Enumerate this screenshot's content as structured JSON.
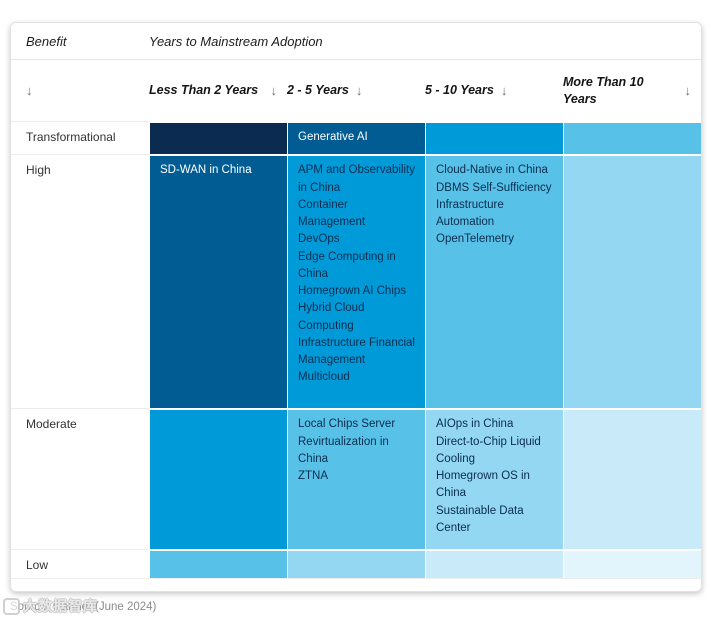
{
  "chart_data": {
    "type": "heatmap",
    "title": "",
    "row_axis_label": "Benefit",
    "col_axis_label": "Years to Mainstream Adoption",
    "legend": "none",
    "columns": [
      "Less Than 2 Years",
      "2 - 5 Years",
      "5 - 10 Years",
      "More Than 10 Years"
    ],
    "rows": [
      "Transformational",
      "High",
      "Moderate",
      "Low"
    ],
    "cells": [
      [
        [],
        [
          "Generative AI"
        ],
        [],
        []
      ],
      [
        [
          "SD-WAN in China"
        ],
        [
          "APM and Observability in China",
          "Container Management",
          "DevOps",
          "Edge Computing in China",
          "Homegrown AI Chips",
          "Hybrid Cloud Computing",
          "Infrastructure Financial Management",
          "Multicloud"
        ],
        [
          "Cloud-Native in China",
          "DBMS Self-Sufficiency",
          "Infrastructure Automation",
          "OpenTelemetry"
        ],
        []
      ],
      [
        [],
        [
          "Local Chips Server",
          "Revirtualization in China",
          "ZTNA"
        ],
        [
          "AIOps in China",
          "Direct-to-Chip Liquid Cooling",
          "Homegrown OS in China",
          "Sustainable Data Center"
        ],
        []
      ],
      [
        [],
        [],
        [],
        []
      ]
    ],
    "cell_colors": [
      [
        "#0C2B51",
        "#005C92",
        "#009AD9",
        "#58C1E8"
      ],
      [
        "#005C92",
        "#009AD9",
        "#58C1E8",
        "#93D7F2"
      ],
      [
        "#009AD9",
        "#58C1E8",
        "#93D7F2",
        "#C9EBF9"
      ],
      [
        "#58C1E8",
        "#93D7F2",
        "#C9EBF9",
        "#E2F4FC"
      ]
    ],
    "cell_text_colors": [
      [
        "#FFFFFF",
        "#FFFFFF",
        "#0B2D4E",
        "#0B2D4E"
      ],
      [
        "#FFFFFF",
        "#0B2D4E",
        "#0B2D4E",
        "#0B2D4E"
      ],
      [
        "#0B2D4E",
        "#0B2D4E",
        "#0B2D4E",
        "#0B2D4E"
      ],
      [
        "#0B2D4E",
        "#0B2D4E",
        "#0B2D4E",
        "#0B2D4E"
      ]
    ]
  },
  "header": {
    "sort_arrow": "↓"
  },
  "footer": {
    "source": "Source: Gartner (June 2024)",
    "watermark": "大数据智库"
  },
  "colors": {
    "card_border": "#e2e2e2",
    "row_divider": "#ececec",
    "header_text": "#1c1c1c",
    "row_label_text": "#333333",
    "arrow_gray": "#6f6f6f",
    "source_gray": "#8b8b8b"
  }
}
